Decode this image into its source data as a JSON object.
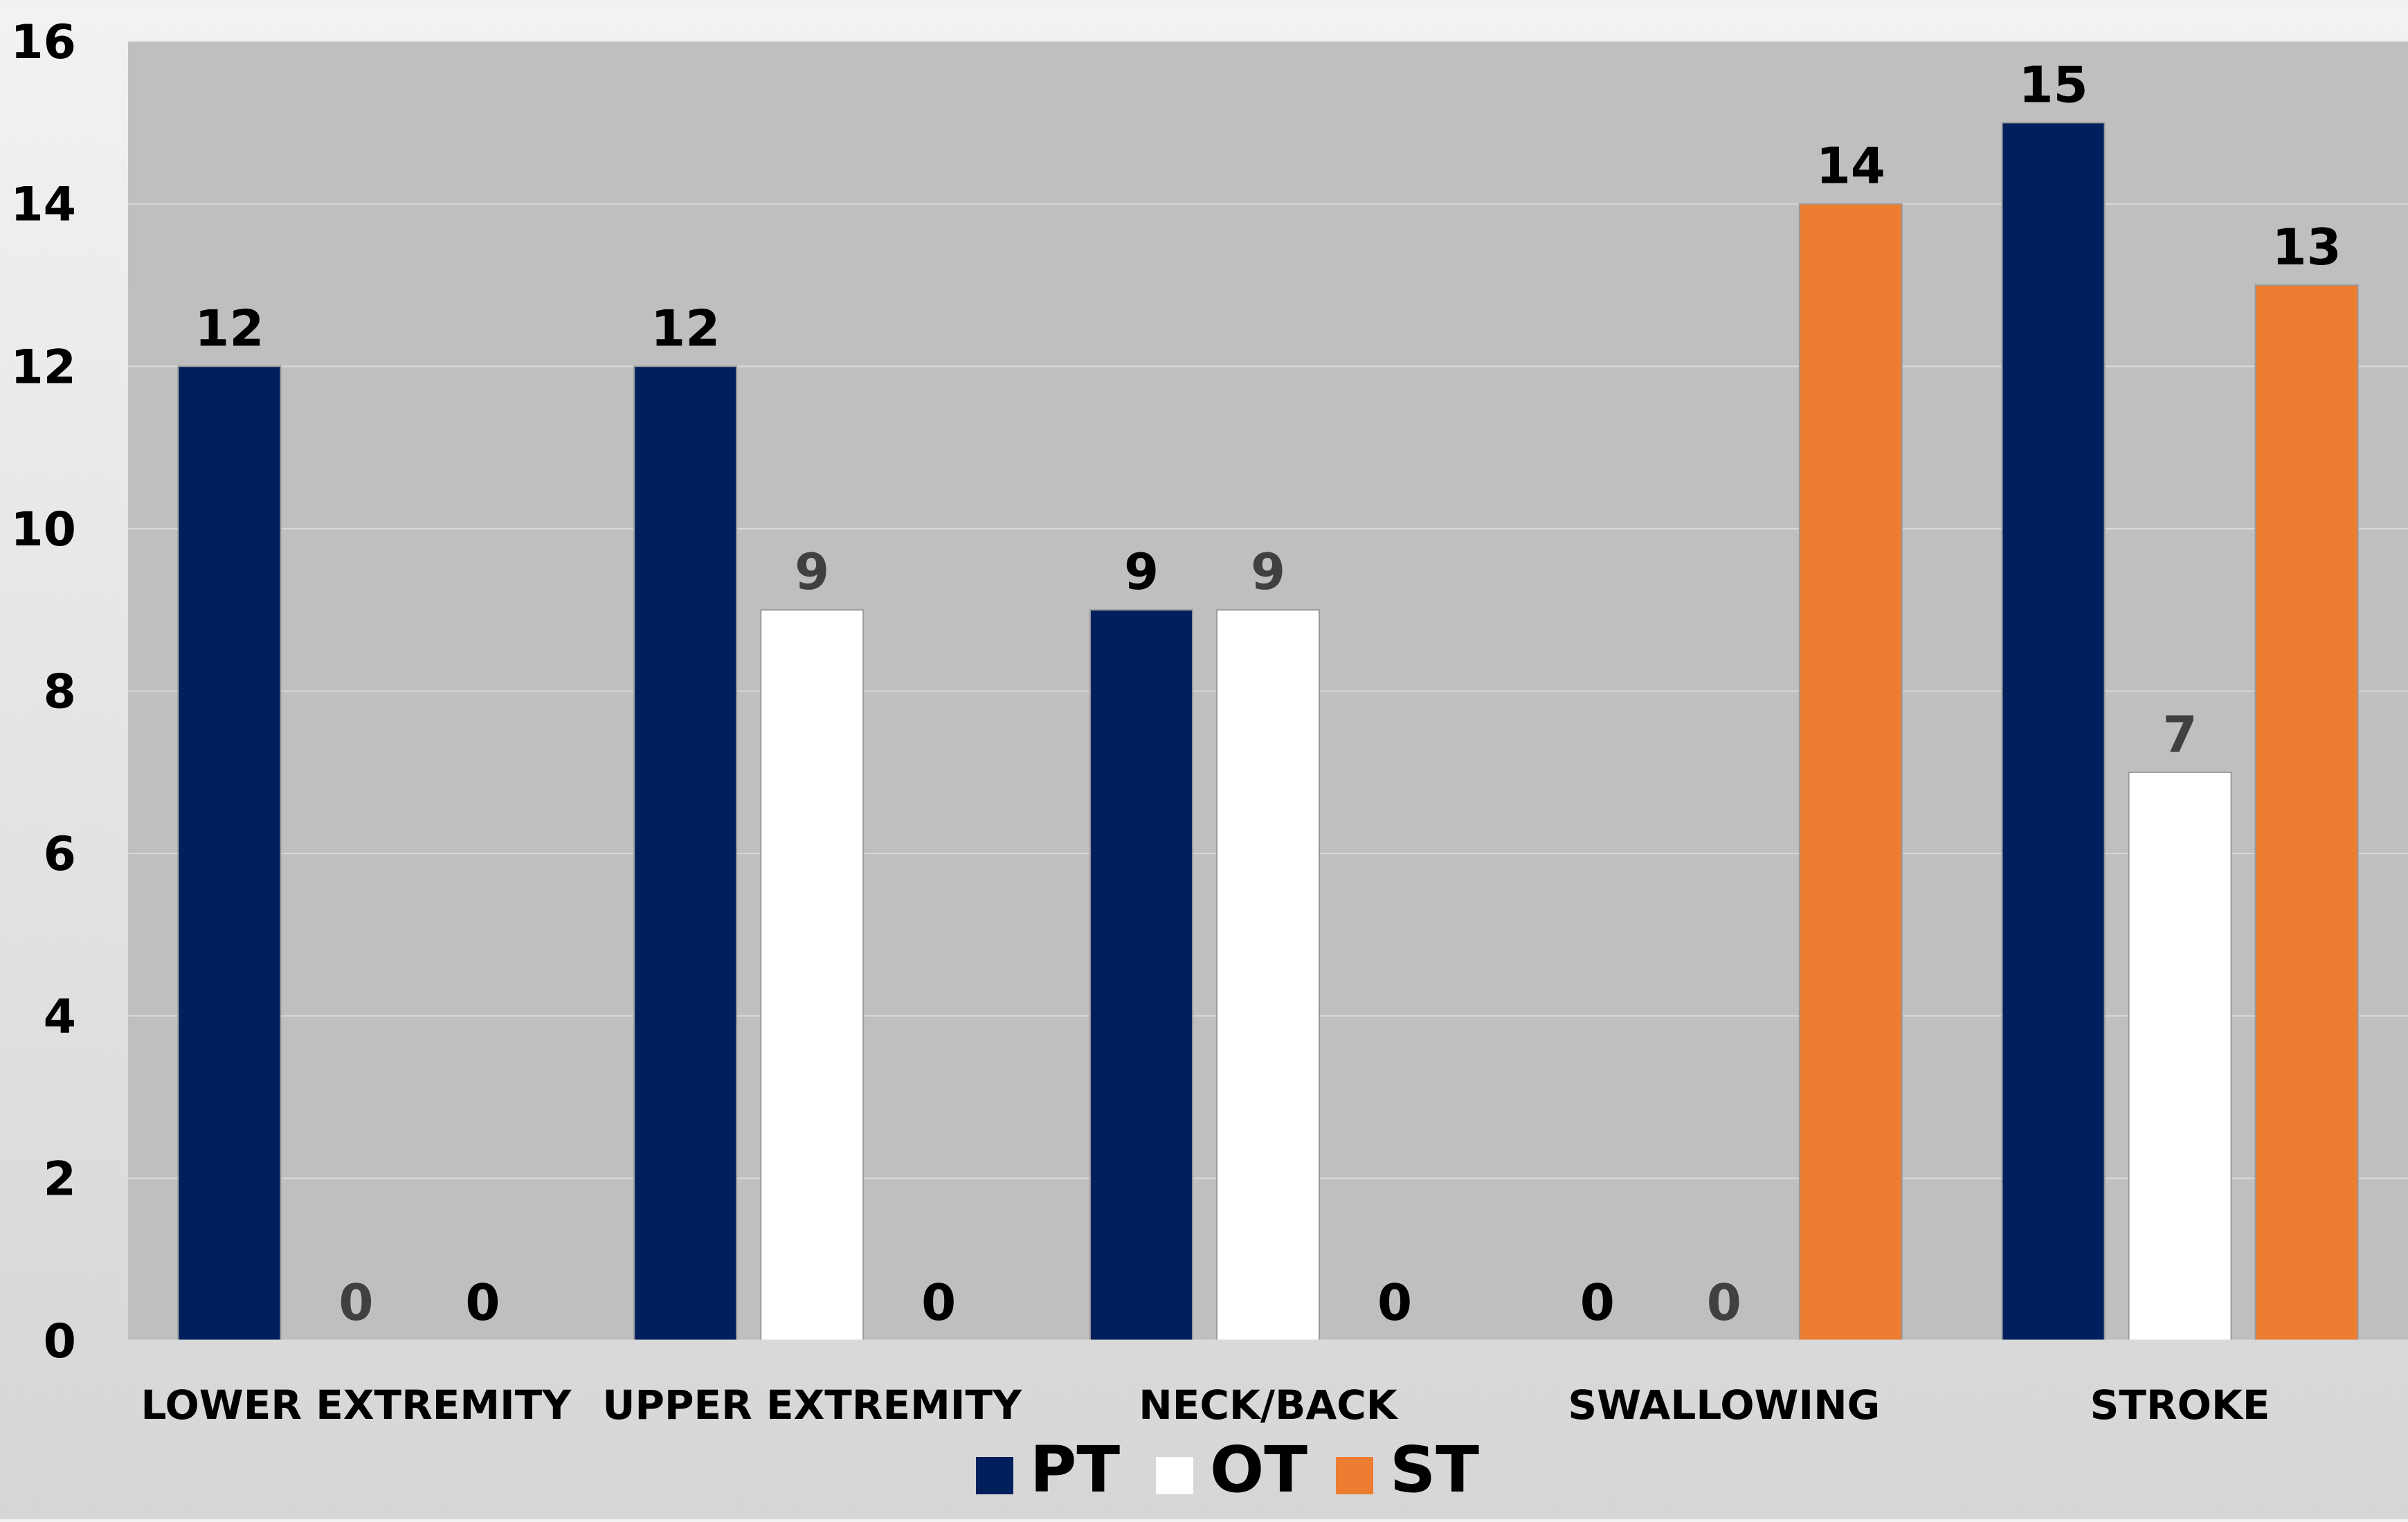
{
  "chart_data": {
    "type": "bar",
    "title": "",
    "xlabel": "",
    "ylabel": "",
    "ylim": [
      0,
      16
    ],
    "yticks": [
      0,
      2,
      4,
      6,
      8,
      10,
      12,
      14,
      16
    ],
    "grid": true,
    "legend_position": "bottom",
    "categories": [
      "LOWER EXTREMITY",
      "UPPER EXTREMITY",
      "NECK/BACK",
      "SWALLOWING",
      "STROKE"
    ],
    "series": [
      {
        "name": "PT",
        "color": "#001f5c",
        "label_color": "#000000",
        "values": [
          12,
          12,
          9,
          null,
          15
        ]
      },
      {
        "name": "OT",
        "color": "#ffffff",
        "label_color": "#404040",
        "values": [
          0,
          9,
          9,
          0,
          7
        ]
      },
      {
        "name": "ST",
        "color": "#ed7d31",
        "label_color": "#000000",
        "values": [
          0,
          0,
          0,
          14,
          13
        ]
      }
    ],
    "data_labels": [
      [
        "12",
        "0",
        "0"
      ],
      [
        "12",
        "9",
        "0"
      ],
      [
        "9",
        "9",
        "0"
      ],
      [
        "0",
        "0",
        "14"
      ],
      [
        "15",
        "7",
        "13"
      ]
    ],
    "plot_background": "#bfbfbf"
  }
}
